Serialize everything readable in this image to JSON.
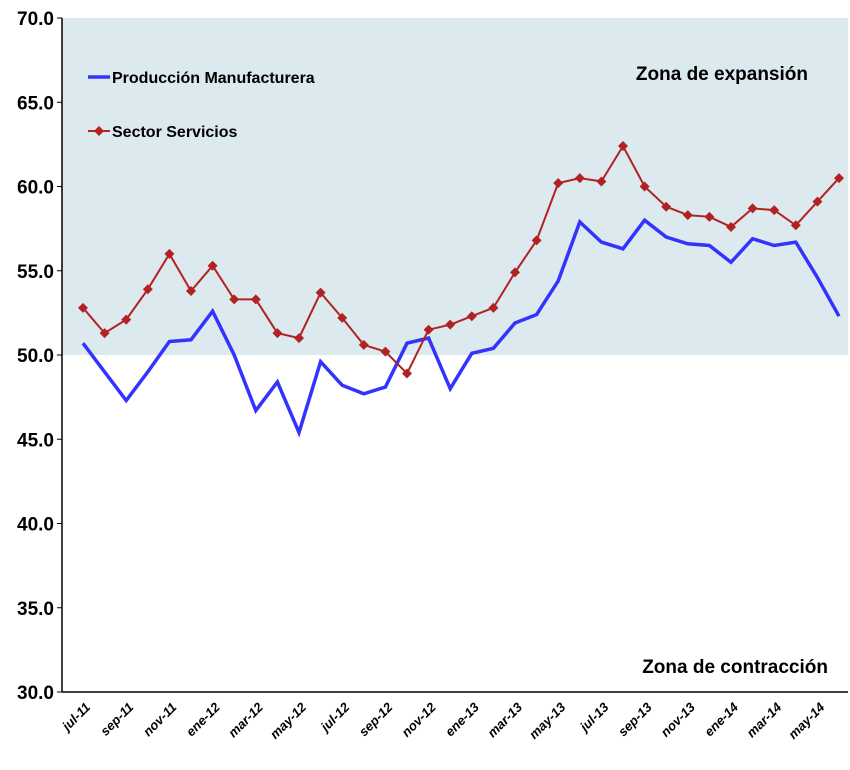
{
  "chart_data": {
    "type": "line",
    "categories": [
      "jul-11",
      null,
      "sep-11",
      null,
      "nov-11",
      null,
      "ene-12",
      null,
      "mar-12",
      null,
      "may-12",
      null,
      "jul-12",
      null,
      "sep-12",
      null,
      "nov-12",
      null,
      "ene-13",
      null,
      "mar-13",
      null,
      "may-13",
      null,
      "jul-13",
      null,
      "sep-13",
      null,
      "nov-13",
      null,
      "ene-14",
      null,
      "mar-14",
      null,
      "may-14",
      null
    ],
    "series": [
      {
        "name": "Producción Manufacturera",
        "color": "#3333ff",
        "values": [
          50.7,
          49.0,
          47.3,
          49.0,
          50.8,
          50.9,
          52.6,
          50.0,
          46.7,
          48.4,
          45.4,
          49.6,
          48.2,
          47.7,
          48.1,
          50.7,
          51.0,
          48.0,
          50.1,
          50.4,
          51.9,
          52.4,
          54.4,
          57.9,
          56.7,
          56.3,
          58.0,
          57.0,
          56.6,
          56.5,
          55.5,
          56.9,
          56.5,
          56.7,
          54.6,
          52.3
        ]
      },
      {
        "name": "Sector Servicios",
        "color": "#b22222",
        "marker": "diamond",
        "values": [
          52.8,
          51.3,
          52.1,
          53.9,
          56.0,
          53.8,
          55.3,
          53.3,
          53.3,
          51.3,
          51.0,
          53.7,
          52.2,
          50.6,
          50.2,
          48.9,
          51.5,
          51.8,
          52.3,
          52.8,
          54.9,
          56.8,
          60.2,
          60.5,
          60.3,
          62.4,
          60.0,
          58.8,
          58.3,
          58.2,
          57.6,
          58.7,
          58.6,
          57.7,
          59.1,
          60.5
        ]
      }
    ],
    "ylim": [
      30,
      70
    ],
    "yticks": [
      {
        "value": 30,
        "label": "30.0"
      },
      {
        "value": 35,
        "label": "35.0"
      },
      {
        "value": 40,
        "label": "40.0"
      },
      {
        "value": 45,
        "label": "45.0"
      },
      {
        "value": 50,
        "label": "50.0"
      },
      {
        "value": 55,
        "label": "55.0"
      },
      {
        "value": 60,
        "label": "60.0"
      },
      {
        "value": 65,
        "label": "65.0"
      },
      {
        "value": 70,
        "label": "70.0"
      }
    ],
    "expansion_band": [
      50,
      70
    ],
    "band_color": "#dce9ee",
    "annotations": [
      "Zona de expansión",
      "Zona de contracción"
    ],
    "legend": "upper left"
  }
}
